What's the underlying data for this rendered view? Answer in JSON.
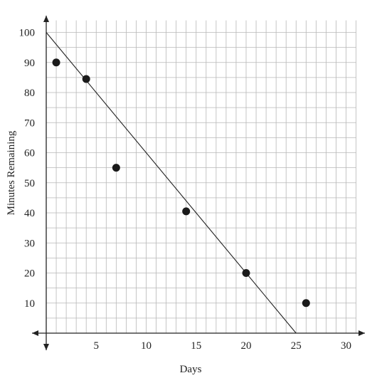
{
  "chart_data": {
    "type": "scatter",
    "title": "",
    "xlabel": "Days",
    "ylabel": "Minutes Remaining",
    "xlim": [
      0,
      31
    ],
    "ylim": [
      0,
      104
    ],
    "x_ticks": [
      5,
      10,
      15,
      20,
      25,
      30
    ],
    "y_ticks": [
      10,
      20,
      30,
      40,
      50,
      60,
      70,
      80,
      90,
      100
    ],
    "x_minor_step": 1,
    "y_minor_step": 5,
    "grid": true,
    "arrows": "both-axes",
    "points": [
      {
        "x": 1,
        "y": 90
      },
      {
        "x": 4,
        "y": 84.5
      },
      {
        "x": 7,
        "y": 55
      },
      {
        "x": 14,
        "y": 40.5
      },
      {
        "x": 20,
        "y": 20
      },
      {
        "x": 26,
        "y": 10
      }
    ],
    "trend_line": {
      "x1": 0,
      "y1": 100,
      "x2": 25,
      "y2": 0
    },
    "colors": {
      "grid": "#b7b7b7",
      "axis": "#222222",
      "points": "#1a1a1a",
      "line": "#222222"
    }
  }
}
